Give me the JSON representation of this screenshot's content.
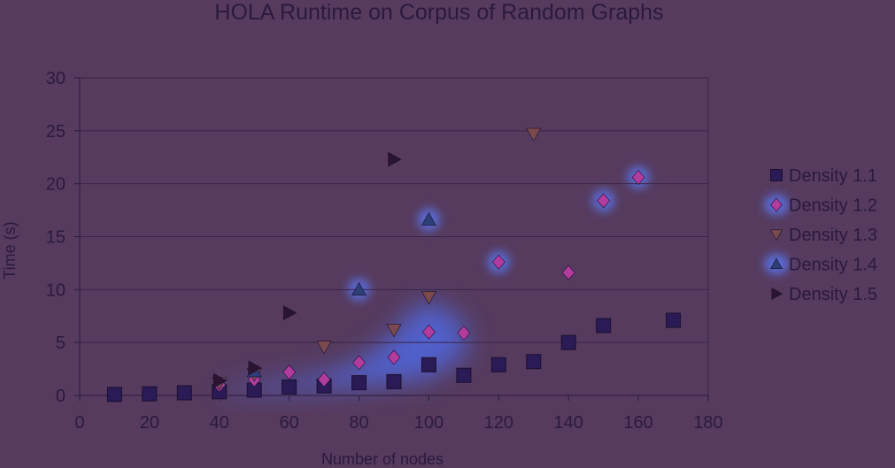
{
  "chart_data": {
    "type": "scatter",
    "title": "HOLA Runtime on Corpus of Random Graphs",
    "xlabel": "Number of nodes",
    "ylabel": "Time (s)",
    "xlim": [
      0,
      180
    ],
    "ylim": [
      0,
      30
    ],
    "xticks": [
      "0",
      "20",
      "40",
      "60",
      "80",
      "100",
      "120",
      "140",
      "160",
      "180"
    ],
    "yticks": [
      "0",
      "5",
      "10",
      "15",
      "20",
      "25",
      "30"
    ],
    "grid": "horizontal",
    "legend_position": "right",
    "series": [
      {
        "name": "Density 1.1",
        "marker": "square",
        "color": "#2a1a55",
        "points": [
          [
            10,
            0.1
          ],
          [
            20,
            0.15
          ],
          [
            30,
            0.25
          ],
          [
            40,
            0.35
          ],
          [
            50,
            0.5
          ],
          [
            60,
            0.8
          ],
          [
            70,
            0.9
          ],
          [
            80,
            1.2
          ],
          [
            90,
            1.3
          ],
          [
            100,
            2.9
          ],
          [
            110,
            1.9
          ],
          [
            120,
            2.9
          ],
          [
            130,
            3.2
          ],
          [
            140,
            5.0
          ],
          [
            150,
            6.6
          ],
          [
            170,
            7.1
          ]
        ]
      },
      {
        "name": "Density 1.2",
        "marker": "diamond",
        "color": "#b23c9e",
        "points": [
          [
            40,
            1.0
          ],
          [
            50,
            1.5
          ],
          [
            60,
            2.2
          ],
          [
            70,
            1.5
          ],
          [
            80,
            3.1
          ],
          [
            90,
            3.6
          ],
          [
            100,
            6.0
          ],
          [
            110,
            5.9
          ],
          [
            120,
            12.6
          ],
          [
            140,
            11.6
          ],
          [
            150,
            18.4
          ],
          [
            160,
            20.6
          ]
        ]
      },
      {
        "name": "Density 1.3",
        "marker": "triangle-down",
        "color": "#7a4a4c",
        "points": [
          [
            40,
            1.2
          ],
          [
            50,
            2.0
          ],
          [
            70,
            4.6
          ],
          [
            90,
            6.2
          ],
          [
            100,
            9.3
          ],
          [
            130,
            24.7
          ]
        ]
      },
      {
        "name": "Density 1.4",
        "marker": "triangle-up",
        "color": "#2d3f77",
        "points": [
          [
            50,
            2.3
          ],
          [
            80,
            10.0
          ],
          [
            100,
            16.6
          ]
        ]
      },
      {
        "name": "Density 1.5",
        "marker": "triangle-right",
        "color": "#2a1432",
        "points": [
          [
            40,
            1.4
          ],
          [
            50,
            2.6
          ],
          [
            60,
            7.8
          ],
          [
            90,
            22.3
          ]
        ]
      }
    ]
  }
}
